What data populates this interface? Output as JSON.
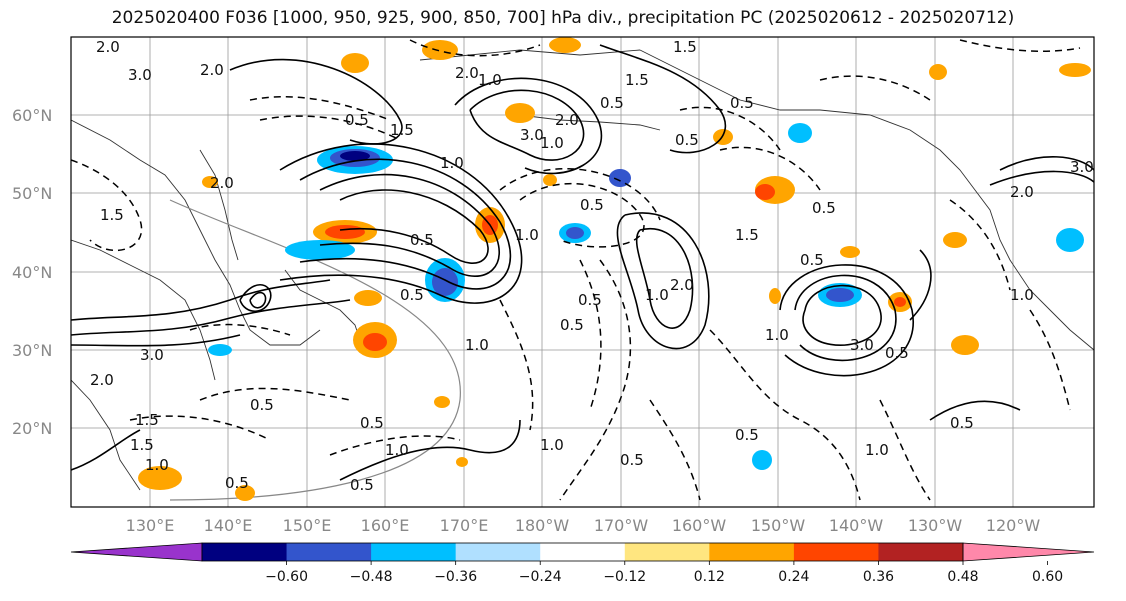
{
  "title": "2025020400 F036 [1000, 950, 925, 900, 850, 700] hPa div., precipitation PC (2025020612 - 2025020712)",
  "lat_labels": [
    "60°N",
    "50°N",
    "40°N",
    "30°N",
    "20°N"
  ],
  "lon_labels": [
    "130°E",
    "140°E",
    "150°E",
    "160°E",
    "170°E",
    "180°W",
    "170°W",
    "160°W",
    "150°W",
    "140°W",
    "130°W",
    "120°W"
  ],
  "colorbar": {
    "colors": [
      "#9933cc",
      "#000080",
      "#3355cc",
      "#00bfff",
      "#b0e0ff",
      "#ffffff",
      "#ffe680",
      "#ffa500",
      "#ff4500",
      "#b22222",
      "#ff88aa"
    ],
    "ticks": [
      "−0.60",
      "−0.48",
      "−0.36",
      "−0.24",
      "−0.12",
      "0.12",
      "0.24",
      "0.36",
      "0.48",
      "0.60"
    ]
  },
  "contour_labels": [
    "2.0",
    "3.0",
    "2.0",
    "2.0",
    "1.0",
    "1.5",
    "0.5",
    "1.5",
    "0.5",
    "3.0",
    "2.0",
    "1.0",
    "0.5",
    "2.0",
    "1.5",
    "0.5",
    "1.0",
    "1.5",
    "0.5",
    "1.0",
    "0.5",
    "3.0",
    "2.0",
    "1.0",
    "0.5",
    "0.5",
    "0.5",
    "1.0",
    "1.5",
    "1.0",
    "2.0",
    "0.5",
    "0.5",
    "0.5",
    "1.0",
    "0.5",
    "1.0",
    "0.5",
    "0.5",
    "3.0",
    "1.0",
    "1.5",
    "2.0",
    "3.0",
    "0.5",
    "1.5",
    "1.0",
    "0.5",
    "0.5",
    "0.5",
    "1.0"
  ]
}
